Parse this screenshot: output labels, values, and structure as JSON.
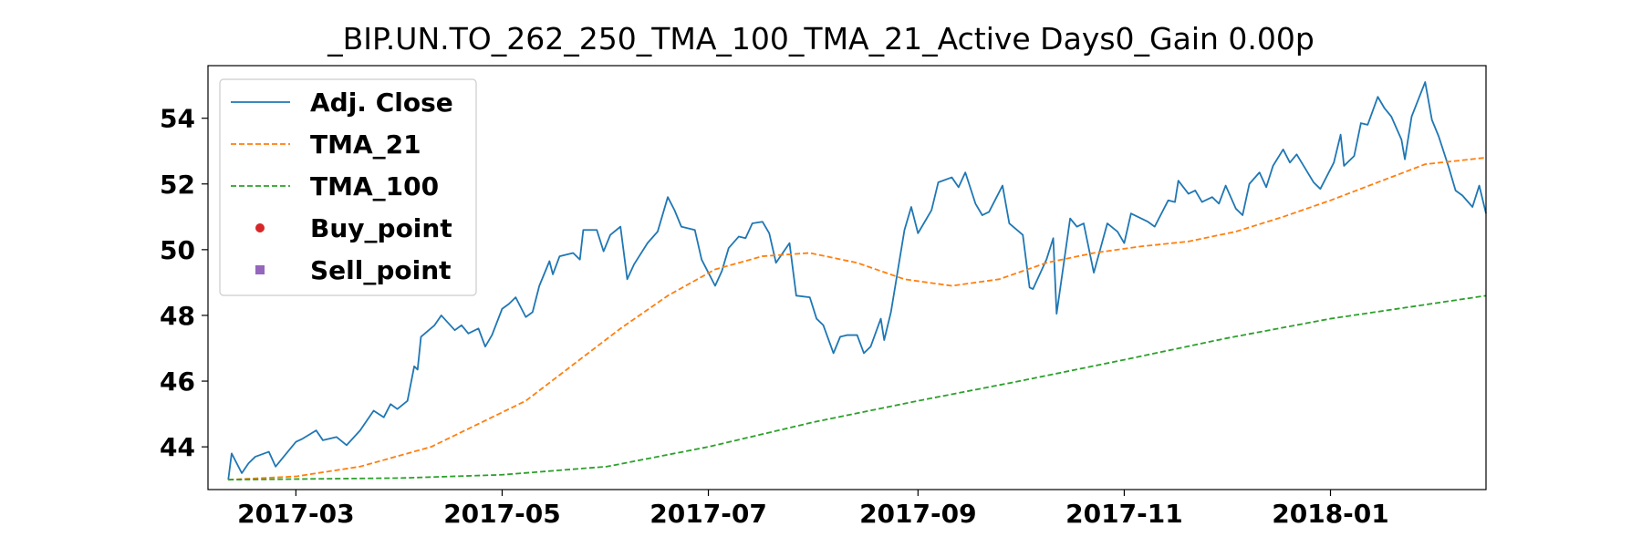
{
  "chart_data": {
    "type": "line",
    "title": "_BIP.UN.TO_262_250_TMA_100_TMA_21_Active Days0_Gain   0.00p",
    "xlabel": "",
    "ylabel": "",
    "x_range": [
      "2017-02-03",
      "2018-02-16"
    ],
    "ylim": [
      42.7,
      55.6
    ],
    "x_ticks": [
      "2017-03-01",
      "2017-05-01",
      "2017-07-01",
      "2017-09-01",
      "2017-11-01",
      "2018-01-01"
    ],
    "x_tick_labels": [
      "2017-03",
      "2017-05",
      "2017-07",
      "2017-09",
      "2017-11",
      "2018-01"
    ],
    "y_ticks": [
      44,
      46,
      48,
      50,
      52,
      54
    ],
    "y_tick_labels": [
      "44",
      "46",
      "48",
      "50",
      "52",
      "54"
    ],
    "grid": false,
    "legend_position": "upper-left",
    "series": [
      {
        "name": "Adj. Close",
        "color": "#1f77b4",
        "style": "solid",
        "points": [
          [
            "2017-02-09",
            43.0
          ],
          [
            "2017-02-10",
            43.8
          ],
          [
            "2017-02-13",
            43.2
          ],
          [
            "2017-02-15",
            43.5
          ],
          [
            "2017-02-17",
            43.7
          ],
          [
            "2017-02-21",
            43.85
          ],
          [
            "2017-02-23",
            43.4
          ],
          [
            "2017-02-27",
            43.9
          ],
          [
            "2017-03-01",
            44.15
          ],
          [
            "2017-03-03",
            44.25
          ],
          [
            "2017-03-07",
            44.5
          ],
          [
            "2017-03-09",
            44.2
          ],
          [
            "2017-03-13",
            44.3
          ],
          [
            "2017-03-16",
            44.05
          ],
          [
            "2017-03-20",
            44.5
          ],
          [
            "2017-03-22",
            44.8
          ],
          [
            "2017-03-24",
            45.1
          ],
          [
            "2017-03-27",
            44.9
          ],
          [
            "2017-03-29",
            45.3
          ],
          [
            "2017-03-31",
            45.15
          ],
          [
            "2017-04-03",
            45.4
          ],
          [
            "2017-04-05",
            46.45
          ],
          [
            "2017-04-06",
            46.35
          ],
          [
            "2017-04-07",
            47.35
          ],
          [
            "2017-04-11",
            47.7
          ],
          [
            "2017-04-13",
            48.0
          ],
          [
            "2017-04-17",
            47.55
          ],
          [
            "2017-04-19",
            47.7
          ],
          [
            "2017-04-21",
            47.45
          ],
          [
            "2017-04-24",
            47.6
          ],
          [
            "2017-04-26",
            47.05
          ],
          [
            "2017-04-28",
            47.4
          ],
          [
            "2017-05-01",
            48.2
          ],
          [
            "2017-05-03",
            48.35
          ],
          [
            "2017-05-05",
            48.55
          ],
          [
            "2017-05-08",
            47.95
          ],
          [
            "2017-05-10",
            48.1
          ],
          [
            "2017-05-12",
            48.9
          ],
          [
            "2017-05-15",
            49.65
          ],
          [
            "2017-05-16",
            49.25
          ],
          [
            "2017-05-18",
            49.8
          ],
          [
            "2017-05-22",
            49.9
          ],
          [
            "2017-05-24",
            49.7
          ],
          [
            "2017-05-25",
            50.6
          ],
          [
            "2017-05-29",
            50.6
          ],
          [
            "2017-05-31",
            49.95
          ],
          [
            "2017-06-02",
            50.45
          ],
          [
            "2017-06-05",
            50.7
          ],
          [
            "2017-06-07",
            49.1
          ],
          [
            "2017-06-09",
            49.55
          ],
          [
            "2017-06-13",
            50.2
          ],
          [
            "2017-06-16",
            50.55
          ],
          [
            "2017-06-19",
            51.6
          ],
          [
            "2017-06-21",
            51.2
          ],
          [
            "2017-06-23",
            50.7
          ],
          [
            "2017-06-27",
            50.6
          ],
          [
            "2017-06-29",
            49.7
          ],
          [
            "2017-07-03",
            48.9
          ],
          [
            "2017-07-05",
            49.35
          ],
          [
            "2017-07-07",
            50.05
          ],
          [
            "2017-07-10",
            50.4
          ],
          [
            "2017-07-12",
            50.35
          ],
          [
            "2017-07-14",
            50.8
          ],
          [
            "2017-07-17",
            50.85
          ],
          [
            "2017-07-19",
            50.5
          ],
          [
            "2017-07-21",
            49.6
          ],
          [
            "2017-07-25",
            50.2
          ],
          [
            "2017-07-27",
            48.6
          ],
          [
            "2017-07-31",
            48.55
          ],
          [
            "2017-08-02",
            47.9
          ],
          [
            "2017-08-04",
            47.7
          ],
          [
            "2017-08-07",
            46.85
          ],
          [
            "2017-08-09",
            47.35
          ],
          [
            "2017-08-11",
            47.4
          ],
          [
            "2017-08-14",
            47.4
          ],
          [
            "2017-08-16",
            46.85
          ],
          [
            "2017-08-18",
            47.05
          ],
          [
            "2017-08-21",
            47.9
          ],
          [
            "2017-08-22",
            47.25
          ],
          [
            "2017-08-24",
            48.1
          ],
          [
            "2017-08-28",
            50.6
          ],
          [
            "2017-08-30",
            51.3
          ],
          [
            "2017-09-01",
            50.5
          ],
          [
            "2017-09-05",
            51.2
          ],
          [
            "2017-09-07",
            52.05
          ],
          [
            "2017-09-11",
            52.2
          ],
          [
            "2017-09-13",
            51.9
          ],
          [
            "2017-09-15",
            52.35
          ],
          [
            "2017-09-18",
            51.4
          ],
          [
            "2017-09-20",
            51.05
          ],
          [
            "2017-09-22",
            51.15
          ],
          [
            "2017-09-26",
            51.95
          ],
          [
            "2017-09-28",
            50.8
          ],
          [
            "2017-10-02",
            50.45
          ],
          [
            "2017-10-04",
            48.85
          ],
          [
            "2017-10-05",
            48.8
          ],
          [
            "2017-10-09",
            49.7
          ],
          [
            "2017-10-11",
            50.35
          ],
          [
            "2017-10-12",
            48.05
          ],
          [
            "2017-10-16",
            50.95
          ],
          [
            "2017-10-18",
            50.7
          ],
          [
            "2017-10-20",
            50.8
          ],
          [
            "2017-10-23",
            49.3
          ],
          [
            "2017-10-25",
            50.05
          ],
          [
            "2017-10-27",
            50.8
          ],
          [
            "2017-10-30",
            50.55
          ],
          [
            "2017-11-01",
            50.2
          ],
          [
            "2017-11-03",
            51.1
          ],
          [
            "2017-11-08",
            50.85
          ],
          [
            "2017-11-10",
            50.7
          ],
          [
            "2017-11-14",
            51.5
          ],
          [
            "2017-11-16",
            51.45
          ],
          [
            "2017-11-17",
            52.1
          ],
          [
            "2017-11-20",
            51.7
          ],
          [
            "2017-11-22",
            51.8
          ],
          [
            "2017-11-24",
            51.45
          ],
          [
            "2017-11-27",
            51.6
          ],
          [
            "2017-11-29",
            51.4
          ],
          [
            "2017-12-01",
            51.95
          ],
          [
            "2017-12-04",
            51.25
          ],
          [
            "2017-12-06",
            51.05
          ],
          [
            "2017-12-08",
            52.0
          ],
          [
            "2017-12-11",
            52.35
          ],
          [
            "2017-12-13",
            51.9
          ],
          [
            "2017-12-15",
            52.55
          ],
          [
            "2017-12-18",
            53.05
          ],
          [
            "2017-12-20",
            52.65
          ],
          [
            "2017-12-22",
            52.9
          ],
          [
            "2017-12-27",
            52.05
          ],
          [
            "2017-12-29",
            51.85
          ],
          [
            "2018-01-02",
            52.65
          ],
          [
            "2018-01-04",
            53.5
          ],
          [
            "2018-01-05",
            52.55
          ],
          [
            "2018-01-08",
            52.85
          ],
          [
            "2018-01-10",
            53.85
          ],
          [
            "2018-01-12",
            53.8
          ],
          [
            "2018-01-15",
            54.65
          ],
          [
            "2018-01-17",
            54.3
          ],
          [
            "2018-01-19",
            54.05
          ],
          [
            "2018-01-22",
            53.35
          ],
          [
            "2018-01-23",
            52.75
          ],
          [
            "2018-01-25",
            54.05
          ],
          [
            "2018-01-29",
            55.1
          ],
          [
            "2018-01-31",
            53.95
          ],
          [
            "2018-02-02",
            53.45
          ],
          [
            "2018-02-05",
            52.5
          ],
          [
            "2018-02-07",
            51.8
          ],
          [
            "2018-02-09",
            51.65
          ],
          [
            "2018-02-12",
            51.3
          ],
          [
            "2018-02-14",
            51.95
          ],
          [
            "2018-02-16",
            51.1
          ]
        ]
      },
      {
        "name": "TMA_21",
        "color": "#ff7f0e",
        "style": "dashed",
        "points": [
          [
            "2017-02-09",
            43.0
          ],
          [
            "2017-03-01",
            43.1
          ],
          [
            "2017-03-20",
            43.4
          ],
          [
            "2017-04-10",
            44.0
          ],
          [
            "2017-04-24",
            44.7
          ],
          [
            "2017-05-08",
            45.4
          ],
          [
            "2017-05-22",
            46.5
          ],
          [
            "2017-06-05",
            47.6
          ],
          [
            "2017-06-19",
            48.6
          ],
          [
            "2017-07-03",
            49.4
          ],
          [
            "2017-07-17",
            49.8
          ],
          [
            "2017-07-31",
            49.9
          ],
          [
            "2017-08-14",
            49.6
          ],
          [
            "2017-08-28",
            49.1
          ],
          [
            "2017-09-11",
            48.9
          ],
          [
            "2017-09-25",
            49.1
          ],
          [
            "2017-10-09",
            49.6
          ],
          [
            "2017-10-23",
            49.9
          ],
          [
            "2017-11-06",
            50.1
          ],
          [
            "2017-11-20",
            50.25
          ],
          [
            "2017-12-04",
            50.55
          ],
          [
            "2017-12-18",
            51.0
          ],
          [
            "2018-01-01",
            51.5
          ],
          [
            "2018-01-15",
            52.05
          ],
          [
            "2018-01-29",
            52.6
          ],
          [
            "2018-02-16",
            52.8
          ]
        ]
      },
      {
        "name": "TMA_100",
        "color": "#2ca02c",
        "style": "dashed",
        "points": [
          [
            "2017-02-09",
            43.0
          ],
          [
            "2017-04-01",
            43.05
          ],
          [
            "2017-05-01",
            43.15
          ],
          [
            "2017-06-01",
            43.4
          ],
          [
            "2017-07-01",
            44.0
          ],
          [
            "2017-08-01",
            44.75
          ],
          [
            "2017-09-01",
            45.4
          ],
          [
            "2017-10-01",
            46.0
          ],
          [
            "2017-11-01",
            46.65
          ],
          [
            "2017-12-01",
            47.3
          ],
          [
            "2018-01-01",
            47.9
          ],
          [
            "2018-02-16",
            48.6
          ]
        ]
      }
    ],
    "markers": [
      {
        "name": "Buy_point",
        "color": "#d62728",
        "shape": "circle",
        "points": []
      },
      {
        "name": "Sell_point",
        "color": "#9467bd",
        "shape": "square",
        "points": []
      }
    ]
  }
}
